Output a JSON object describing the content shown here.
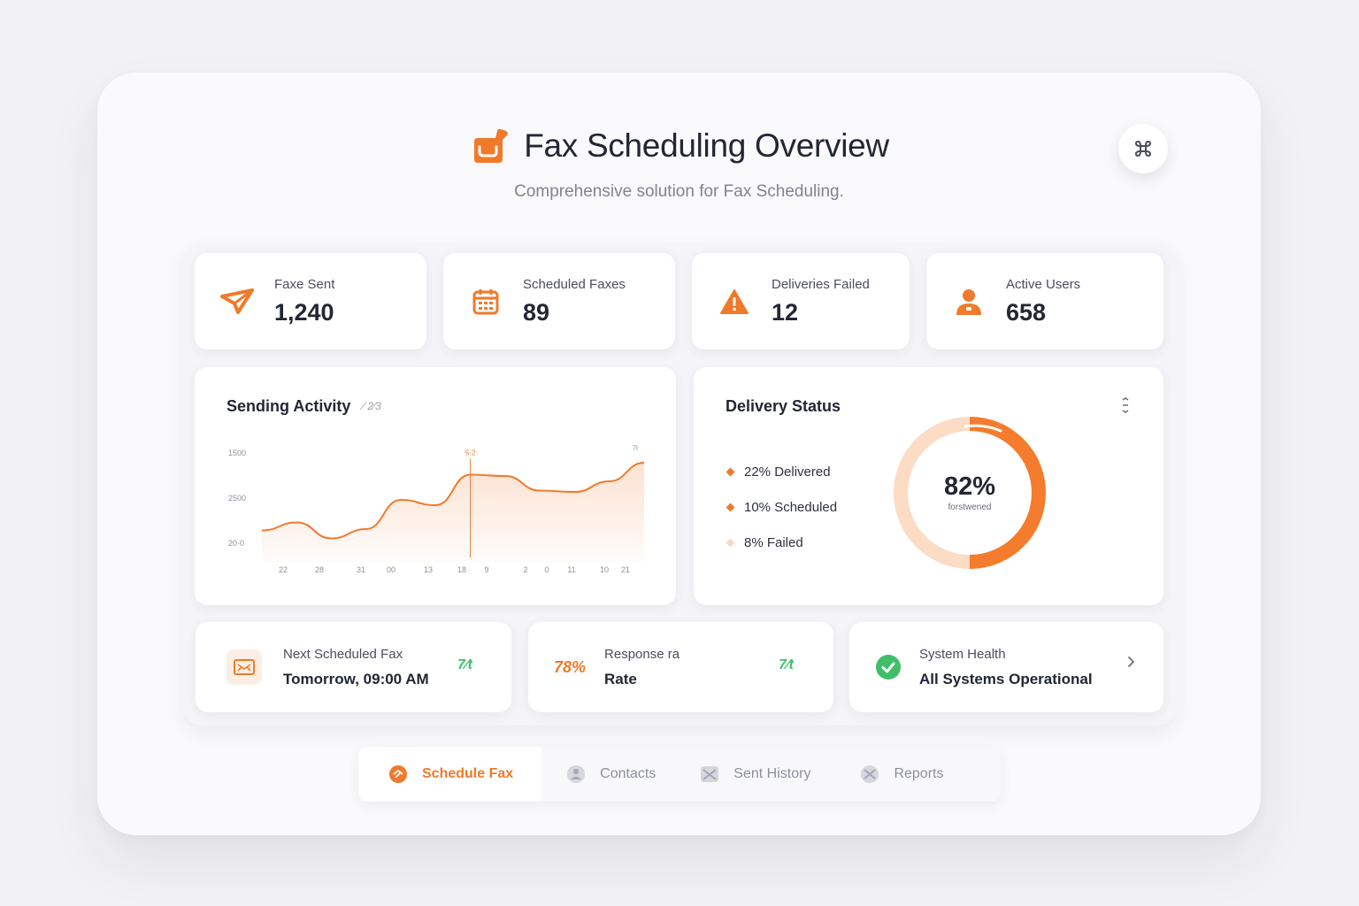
{
  "header": {
    "title": "Fax Scheduling Overview",
    "subtitle": "Comprehensive solution for Fax Scheduling."
  },
  "stats": [
    {
      "label": "Faxe Sent",
      "value": "1,240",
      "icon": "paper-plane-icon"
    },
    {
      "label": "Scheduled Faxes",
      "value": "89",
      "icon": "calendar-icon"
    },
    {
      "label": "Deliveries Failed",
      "value": "12",
      "icon": "warning-icon"
    },
    {
      "label": "Active Users",
      "value": "658",
      "icon": "user-icon"
    }
  ],
  "activity": {
    "title": "Sending Activity",
    "title_aux": "⁄ 2⁄3",
    "y_ticks": [
      "1500",
      "2500",
      "20·0"
    ],
    "x_ticks": [
      "22",
      "28",
      "31",
      "00",
      "13",
      "18",
      "9",
      "2",
      "0",
      "11",
      "10",
      "21"
    ],
    "peak_label": "5·2",
    "end_label": "7ℓ"
  },
  "delivery": {
    "title": "Delivery Status",
    "center_value": "82%",
    "center_sub": "forstwened",
    "legend": [
      {
        "text": "22% Delivered",
        "color": "#f07a2a"
      },
      {
        "text": "10% Scheduled",
        "color": "#f07a2a"
      },
      {
        "text": "8% Failed",
        "color": "#f7d9c4"
      }
    ]
  },
  "bottom": {
    "next_fax": {
      "label": "Next Scheduled Fax",
      "value": "Tomorrow, 09:00 AM",
      "trend": "7⁄t"
    },
    "response": {
      "percent": "78%",
      "label": "Response ra",
      "value": "Rate",
      "trend": "7⁄t"
    },
    "health": {
      "label": "System Health",
      "value": "All Systems Operational"
    }
  },
  "nav": [
    {
      "label": "Schedule Fax",
      "icon": "schedule-icon"
    },
    {
      "label": "Contacts",
      "icon": "contacts-icon"
    },
    {
      "label": "Sent History",
      "icon": "history-icon"
    },
    {
      "label": "Reports",
      "icon": "reports-icon"
    }
  ],
  "colors": {
    "accent": "#f07a2a",
    "accent_light": "#fbd8bf",
    "success": "#3fbf6a"
  },
  "chart_data": {
    "type": "area",
    "title": "Sending Activity",
    "x": [
      "22",
      "28",
      "31",
      "00",
      "13",
      "18",
      "9",
      "2",
      "0",
      "11",
      "10",
      "21"
    ],
    "series": [
      {
        "values": [
          1170,
          1230,
          1110,
          1180,
          1400,
          1360,
          1590,
          1580,
          1470,
          1460,
          1540,
          1680
        ]
      }
    ],
    "ylim": [
      1000,
      1800
    ],
    "grid": false
  }
}
